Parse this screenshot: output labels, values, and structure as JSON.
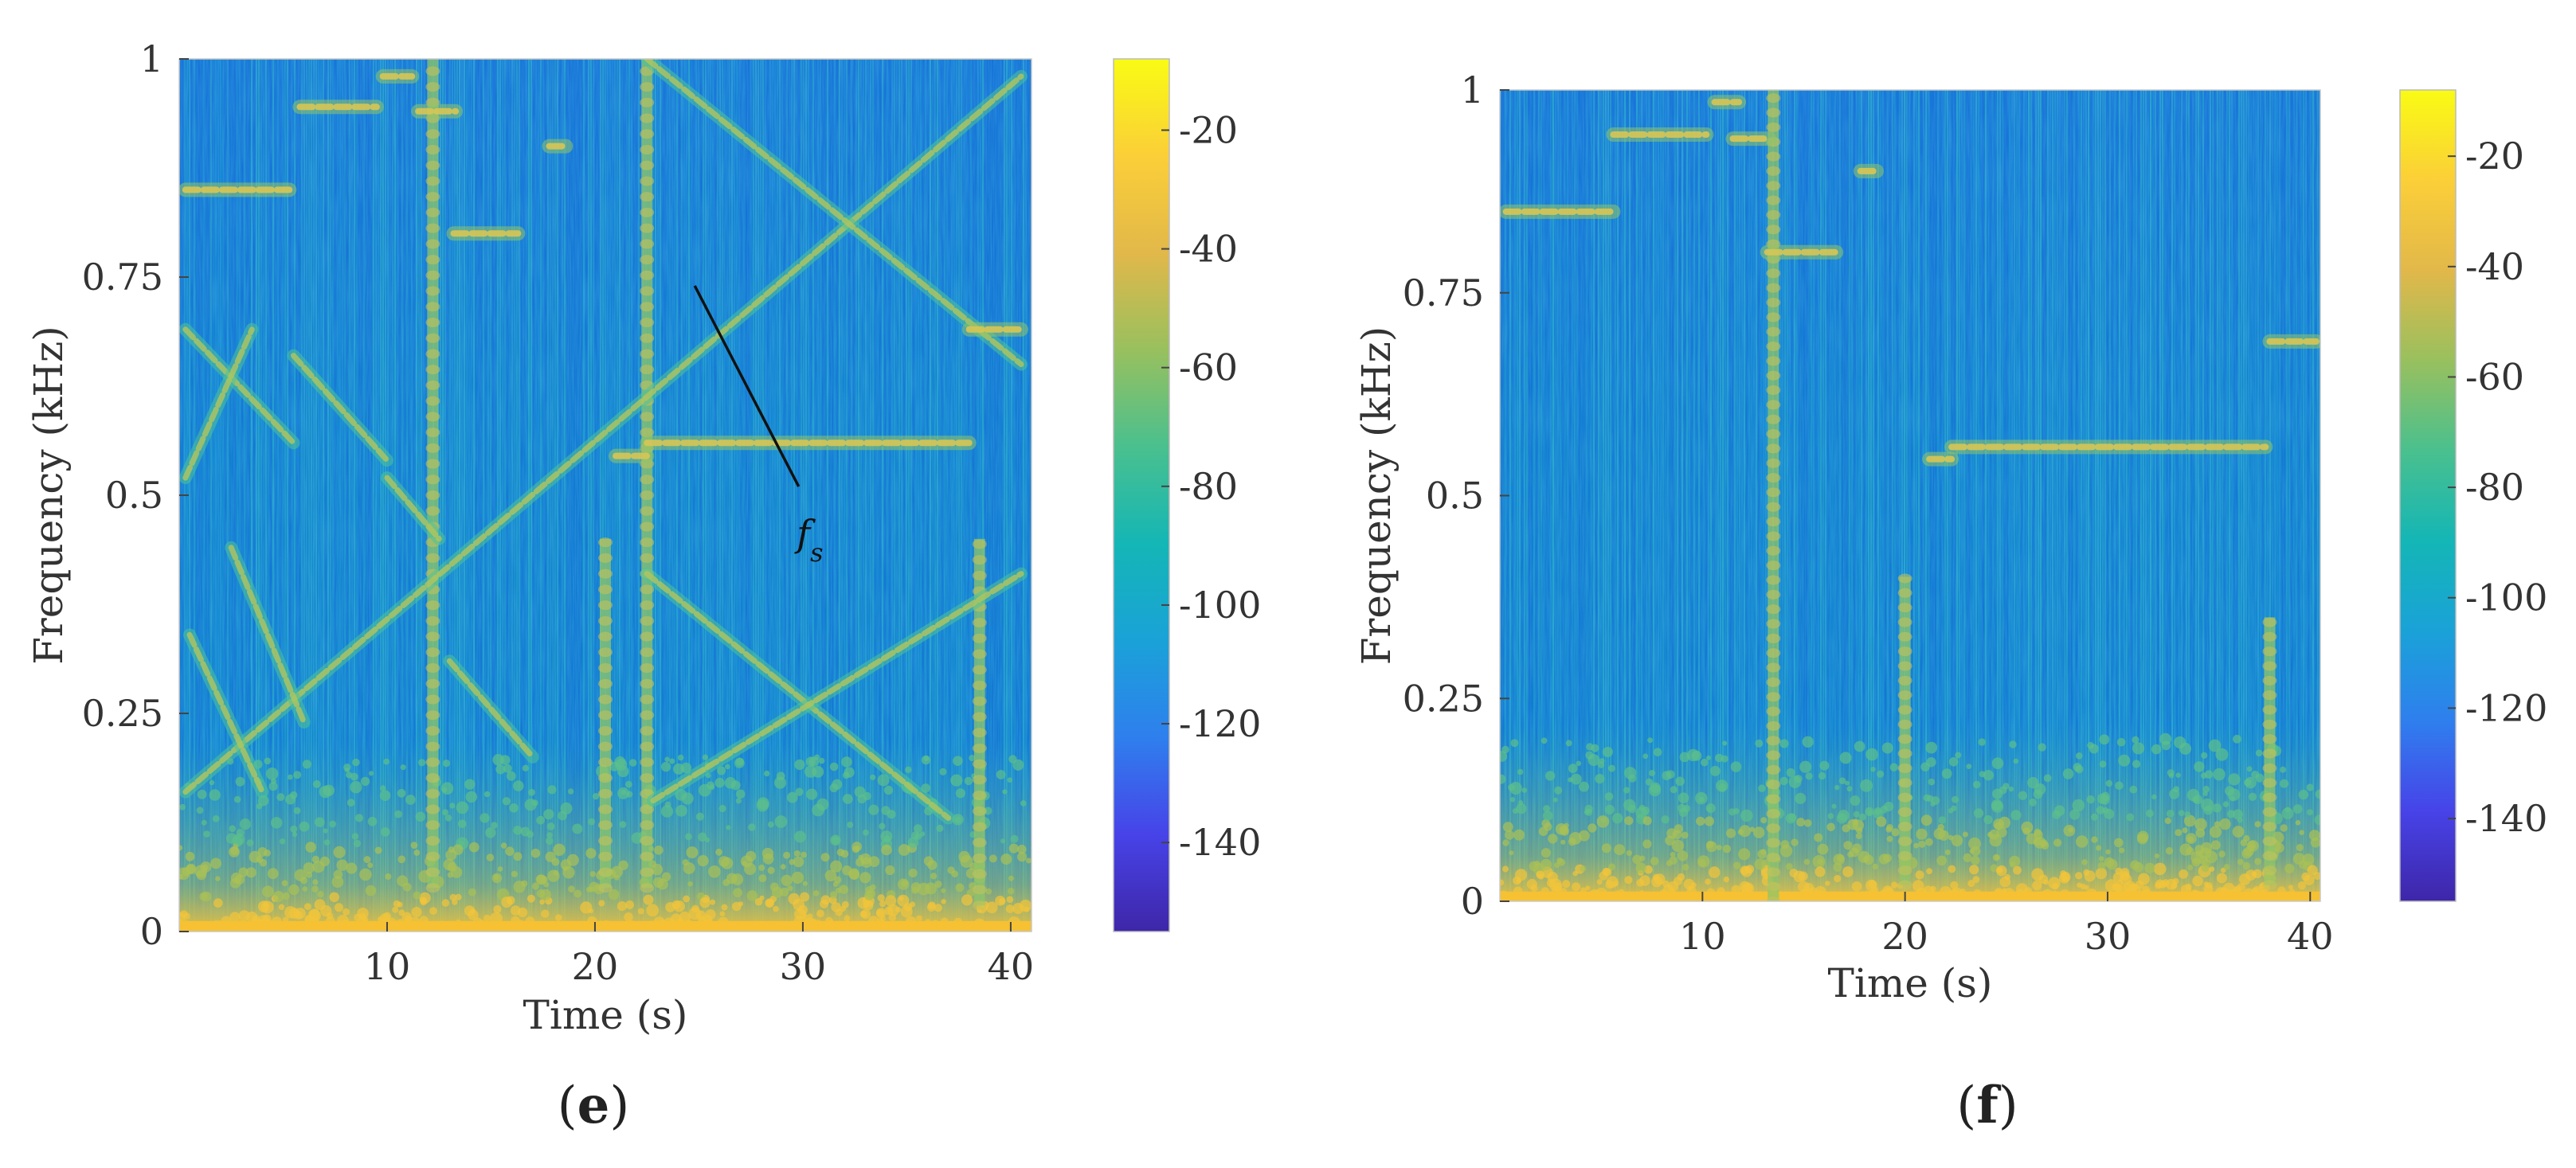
{
  "colors": {
    "background": "#1482d2",
    "colormap": [
      "#3e26a8",
      "#4743e8",
      "#2f7fee",
      "#1aa2d8",
      "#14b6b6",
      "#4ac08e",
      "#99c05e",
      "#e2b84a",
      "#fbcf38",
      "#f9fb14"
    ],
    "annotation": "#111111"
  },
  "chart_data": [
    {
      "panel": "e",
      "panel_label": "(e)",
      "type": "heatmap",
      "kind": "spectrogram",
      "xlabel": "Time (s)",
      "ylabel": "Frequency (kHz)",
      "xlim": [
        0,
        41
      ],
      "ylim": [
        0,
        1
      ],
      "xticks": [
        10,
        20,
        30,
        40
      ],
      "xtick_labels": [
        "10",
        "20",
        "30",
        "40"
      ],
      "yticks": [
        0,
        0.25,
        0.5,
        0.75,
        1
      ],
      "ytick_labels": [
        "0",
        "0.25",
        "0.5",
        "0.75",
        "1"
      ],
      "colorbar": {
        "range": [
          -155,
          -8
        ],
        "ticks": [
          -20,
          -40,
          -60,
          -80,
          -100,
          -120,
          -140
        ],
        "tick_labels": [
          "-20",
          "-40",
          "-60",
          "-80",
          "-100",
          "-120",
          "-140"
        ]
      },
      "annotation": {
        "text": "f",
        "subscript": "s",
        "line_from": [
          24.8,
          0.74
        ],
        "line_to": [
          29.8,
          0.51
        ],
        "text_at": [
          29.7,
          0.46
        ]
      },
      "features": {
        "diagonals": [
          {
            "name": "rising-line-fs",
            "from": [
              0.3,
              0.16
            ],
            "to": [
              40.5,
              0.98
            ]
          },
          {
            "name": "falling-upper-right",
            "from": [
              22.5,
              1.0
            ],
            "to": [
              40.5,
              0.65
            ]
          },
          {
            "name": "falling-lower-right",
            "from": [
              22.5,
              0.41
            ],
            "to": [
              37,
              0.13
            ]
          },
          {
            "name": "rising-lower-right",
            "from": [
              22.8,
              0.15
            ],
            "to": [
              40.5,
              0.41
            ]
          },
          {
            "name": "falling-left-1",
            "from": [
              0.3,
              0.69
            ],
            "to": [
              5.5,
              0.56
            ]
          },
          {
            "name": "falling-left-2",
            "from": [
              5.5,
              0.66
            ],
            "to": [
              10,
              0.54
            ]
          },
          {
            "name": "falling-left-3",
            "from": [
              10,
              0.52
            ],
            "to": [
              12.5,
              0.45
            ]
          },
          {
            "name": "falling-mid-1",
            "from": [
              13,
              0.31
            ],
            "to": [
              17,
              0.2
            ]
          },
          {
            "name": "falling-left-4",
            "from": [
              0.5,
              0.34
            ],
            "to": [
              4,
              0.16
            ]
          },
          {
            "name": "rising-left-1",
            "from": [
              0.3,
              0.52
            ],
            "to": [
              3.5,
              0.69
            ]
          },
          {
            "name": "falling-left-5",
            "from": [
              2.5,
              0.44
            ],
            "to": [
              6,
              0.24
            ]
          }
        ],
        "horizontals": [
          {
            "name": "tone-0.85",
            "t0": 0.3,
            "t1": 5.3,
            "f": 0.85
          },
          {
            "name": "tone-0.945",
            "t0": 5.8,
            "t1": 9.5,
            "f": 0.945
          },
          {
            "name": "tone-0.98",
            "t0": 9.8,
            "t1": 11.2,
            "f": 0.98
          },
          {
            "name": "tone-0.94",
            "t0": 11.5,
            "t1": 13.3,
            "f": 0.94
          },
          {
            "name": "tone-0.80",
            "t0": 13.2,
            "t1": 16.3,
            "f": 0.8
          },
          {
            "name": "tone-0.90",
            "t0": 17.8,
            "t1": 18.6,
            "f": 0.9
          },
          {
            "name": "tone-0.56",
            "t0": 22.5,
            "t1": 38.0,
            "f": 0.56
          },
          {
            "name": "tone-0.545",
            "t0": 21.0,
            "t1": 22.5,
            "f": 0.545
          },
          {
            "name": "tone-0.69",
            "t0": 38.0,
            "t1": 40.5,
            "f": 0.69
          }
        ],
        "verticals": [
          {
            "name": "burst-12",
            "t": 12.2,
            "f0": 0.05,
            "f1": 1.0
          },
          {
            "name": "burst-22.5",
            "t": 22.5,
            "f0": 0.05,
            "f1": 1.0
          },
          {
            "name": "burst-20.5",
            "t": 20.5,
            "f0": 0.05,
            "f1": 0.45
          },
          {
            "name": "burst-38.5",
            "t": 38.5,
            "f0": 0.03,
            "f1": 0.45
          }
        ]
      }
    },
    {
      "panel": "f",
      "panel_label": "(f)",
      "type": "heatmap",
      "kind": "spectrogram",
      "xlabel": "Time (s)",
      "ylabel": "Frequency (kHz)",
      "xlim": [
        0,
        40.5
      ],
      "ylim": [
        0,
        1
      ],
      "xticks": [
        10,
        20,
        30,
        40
      ],
      "xtick_labels": [
        "10",
        "20",
        "30",
        "40"
      ],
      "yticks": [
        0,
        0.25,
        0.5,
        0.75,
        1
      ],
      "ytick_labels": [
        "0",
        "0.25",
        "0.5",
        "0.75",
        "1"
      ],
      "colorbar": {
        "range": [
          -155,
          -8
        ],
        "ticks": [
          -20,
          -40,
          -60,
          -80,
          -100,
          -120,
          -140
        ],
        "tick_labels": [
          "-20",
          "-40",
          "-60",
          "-80",
          "-100",
          "-120",
          "-140"
        ]
      },
      "features": {
        "diagonals": [],
        "horizontals": [
          {
            "name": "tone-0.85",
            "t0": 0.3,
            "t1": 5.6,
            "f": 0.85
          },
          {
            "name": "tone-0.945",
            "t0": 5.6,
            "t1": 10.2,
            "f": 0.945
          },
          {
            "name": "tone-0.985",
            "t0": 10.6,
            "t1": 11.8,
            "f": 0.985
          },
          {
            "name": "tone-0.94",
            "t0": 11.5,
            "t1": 13.3,
            "f": 0.94
          },
          {
            "name": "tone-0.80",
            "t0": 13.2,
            "t1": 16.6,
            "f": 0.8
          },
          {
            "name": "tone-0.90",
            "t0": 17.8,
            "t1": 18.6,
            "f": 0.9
          },
          {
            "name": "tone-0.56",
            "t0": 22.3,
            "t1": 37.8,
            "f": 0.56
          },
          {
            "name": "tone-0.545",
            "t0": 21.2,
            "t1": 22.3,
            "f": 0.545
          },
          {
            "name": "tone-0.69",
            "t0": 38.0,
            "t1": 40.3,
            "f": 0.69
          }
        ],
        "verticals": [
          {
            "name": "burst-13.5",
            "t": 13.5,
            "f0": 0.0,
            "f1": 1.0
          },
          {
            "name": "burst-20",
            "t": 20.0,
            "f0": 0.02,
            "f1": 0.4
          },
          {
            "name": "burst-38",
            "t": 38.0,
            "f0": 0.02,
            "f1": 0.35
          }
        ]
      }
    }
  ]
}
